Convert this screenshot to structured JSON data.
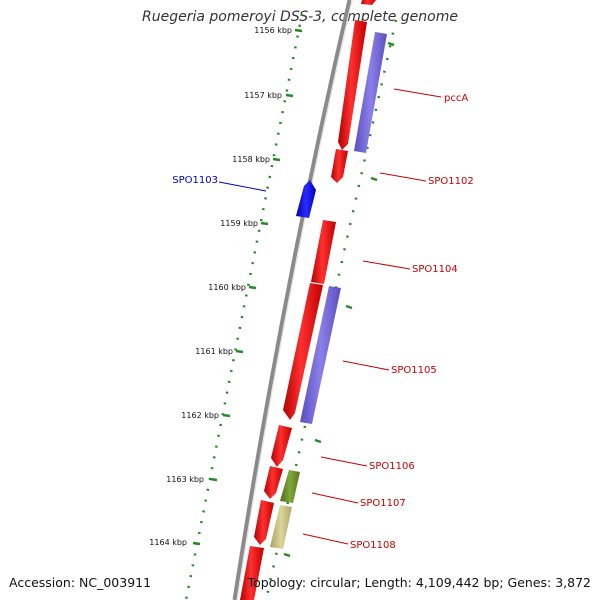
{
  "title": "Ruegeria pomeroyi DSS-3, complete genome",
  "footer": {
    "accession": "Accession: NC_003911",
    "summary": "Topology: circular; Length: 4,109,442 bp; Genes: 3,872"
  },
  "scale": {
    "unit": "kbp",
    "labels": [
      "1156 kbp",
      "1157 kbp",
      "1158 kbp",
      "1159 kbp",
      "1160 kbp",
      "1161 kbp",
      "1162 kbp",
      "1163 kbp",
      "1164 kbp"
    ]
  },
  "genes": [
    {
      "name": "pccA",
      "color": "#cc0000"
    },
    {
      "name": "SPO1102",
      "color": "#cc0000"
    },
    {
      "name": "SPO1103",
      "color": "#0000cc"
    },
    {
      "name": "SPO1104",
      "color": "#cc0000"
    },
    {
      "name": "SPO1105",
      "color": "#cc0000"
    },
    {
      "name": "SPO1106",
      "color": "#cc0000"
    },
    {
      "name": "SPO1107",
      "color": "#cc0000"
    },
    {
      "name": "SPO1108",
      "color": "#cc0000"
    }
  ],
  "colors": {
    "backbone": "#888888",
    "cds": "#ff0000",
    "cds_reverse": "#0000ff",
    "rna": "#7b68d8",
    "track_green": "#228b22",
    "feature_olive": "#6b8e23",
    "feature_khaki": "#c8c080"
  }
}
